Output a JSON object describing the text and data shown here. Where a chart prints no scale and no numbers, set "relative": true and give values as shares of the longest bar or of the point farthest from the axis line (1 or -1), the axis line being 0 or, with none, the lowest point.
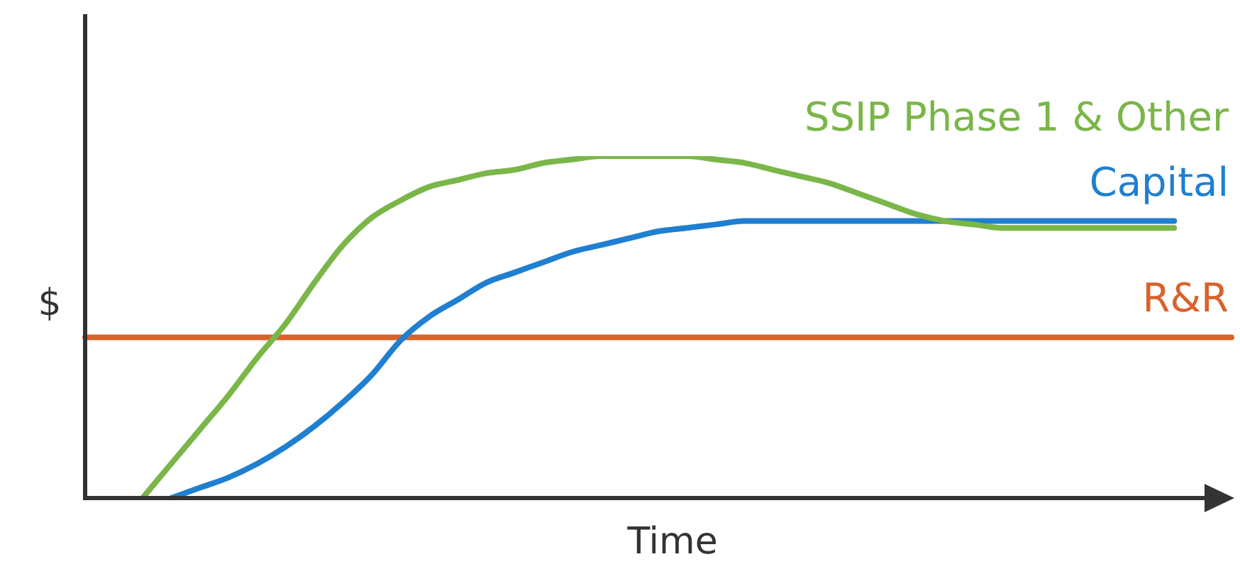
{
  "chart_data": {
    "type": "line",
    "relative": true,
    "xlabel": "Time",
    "ylabel": "$",
    "legend": false,
    "grid": false,
    "marker": "none",
    "line_style": "solid",
    "categories": [
      null,
      null,
      null,
      null,
      null,
      null,
      null,
      null,
      null,
      null,
      null,
      null,
      null,
      null,
      null,
      null,
      null,
      null,
      null,
      null,
      null,
      null,
      null,
      null,
      null,
      null,
      null,
      null,
      null,
      null,
      null,
      null,
      null,
      null,
      null,
      null,
      null,
      null,
      null,
      null,
      null
    ],
    "series": [
      {
        "name": "SSIP Phase 1 & Other",
        "color": "#7ab648",
        "values": [
          null,
          null,
          0,
          0.1,
          0.2,
          0.3,
          0.41,
          0.51,
          0.63,
          0.74,
          0.82,
          0.87,
          0.91,
          0.93,
          0.95,
          0.96,
          0.98,
          0.99,
          1.0,
          1.0,
          1.0,
          1.0,
          0.99,
          0.98,
          0.96,
          0.94,
          0.92,
          0.89,
          0.86,
          0.83,
          0.81,
          0.8,
          0.79,
          0.79,
          0.79,
          0.79,
          0.79,
          0.79,
          0.79,
          null,
          null
        ]
      },
      {
        "name": "Capital",
        "color": "#1f7fd0",
        "values": [
          null,
          null,
          null,
          0,
          0.03,
          0.06,
          0.1,
          0.15,
          0.21,
          0.28,
          0.36,
          0.46,
          0.53,
          0.58,
          0.63,
          0.66,
          0.69,
          0.72,
          0.74,
          0.76,
          0.78,
          0.79,
          0.8,
          0.81,
          0.81,
          0.81,
          0.81,
          0.81,
          0.81,
          0.81,
          0.81,
          0.81,
          0.81,
          0.81,
          0.81,
          0.81,
          0.81,
          0.81,
          0.81,
          null,
          null
        ]
      },
      {
        "name": "R&R",
        "color": "#d9622b",
        "values": [
          0.47,
          0.47,
          0.47,
          0.47,
          0.47,
          0.47,
          0.47,
          0.47,
          0.47,
          0.47,
          0.47,
          0.47,
          0.47,
          0.47,
          0.47,
          0.47,
          0.47,
          0.47,
          0.47,
          0.47,
          0.47,
          0.47,
          0.47,
          0.47,
          0.47,
          0.47,
          0.47,
          0.47,
          0.47,
          0.47,
          0.47,
          0.47,
          0.47,
          0.47,
          0.47,
          0.47,
          0.47,
          0.47,
          0.47,
          0.47,
          0.47
        ]
      }
    ]
  }
}
